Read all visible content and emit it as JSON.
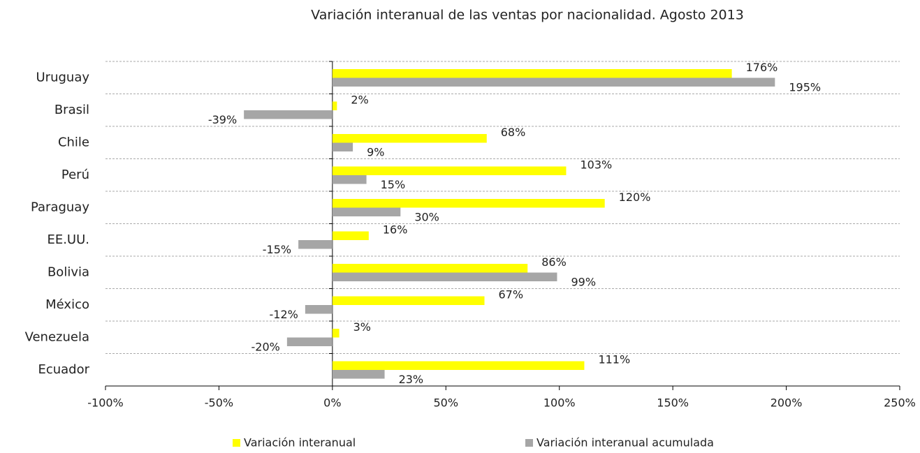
{
  "chart_data": {
    "type": "bar",
    "orientation": "horizontal",
    "title": "Variación interanual  de las ventas por nacionalidad. Agosto 2013",
    "categories": [
      "Uruguay",
      "Brasil",
      "Chile",
      "Perú",
      "Paraguay",
      "EE.UU.",
      "Bolivia",
      "México",
      "Venezuela",
      "Ecuador"
    ],
    "series": [
      {
        "name": "Variación interanual",
        "color": "#ffff00",
        "values": [
          176,
          2,
          68,
          103,
          120,
          16,
          86,
          67,
          3,
          111
        ],
        "value_labels": [
          "176%",
          "2%",
          "68%",
          "103%",
          "120%",
          "16%",
          "86%",
          "67%",
          "3%",
          "111%"
        ]
      },
      {
        "name": "Variación interanual acumulada",
        "color": "#a6a6a6",
        "values": [
          195,
          -39,
          9,
          15,
          30,
          -15,
          99,
          -12,
          -20,
          23
        ],
        "value_labels": [
          "195%",
          "-39%",
          "9%",
          "15%",
          "30%",
          "-15%",
          "99%",
          "-12%",
          "-20%",
          "23%"
        ]
      }
    ],
    "xlim": [
      -100,
      250
    ],
    "xticks": [
      {
        "value": -100,
        "label": "-100%"
      },
      {
        "value": -50,
        "label": "-50%"
      },
      {
        "value": 0,
        "label": "0%"
      },
      {
        "value": 50,
        "label": "50%"
      },
      {
        "value": 100,
        "label": "100%"
      },
      {
        "value": 150,
        "label": "150%"
      },
      {
        "value": 200,
        "label": "200%"
      },
      {
        "value": 250,
        "label": "250%"
      }
    ],
    "grid": true,
    "legend": "bottom"
  }
}
